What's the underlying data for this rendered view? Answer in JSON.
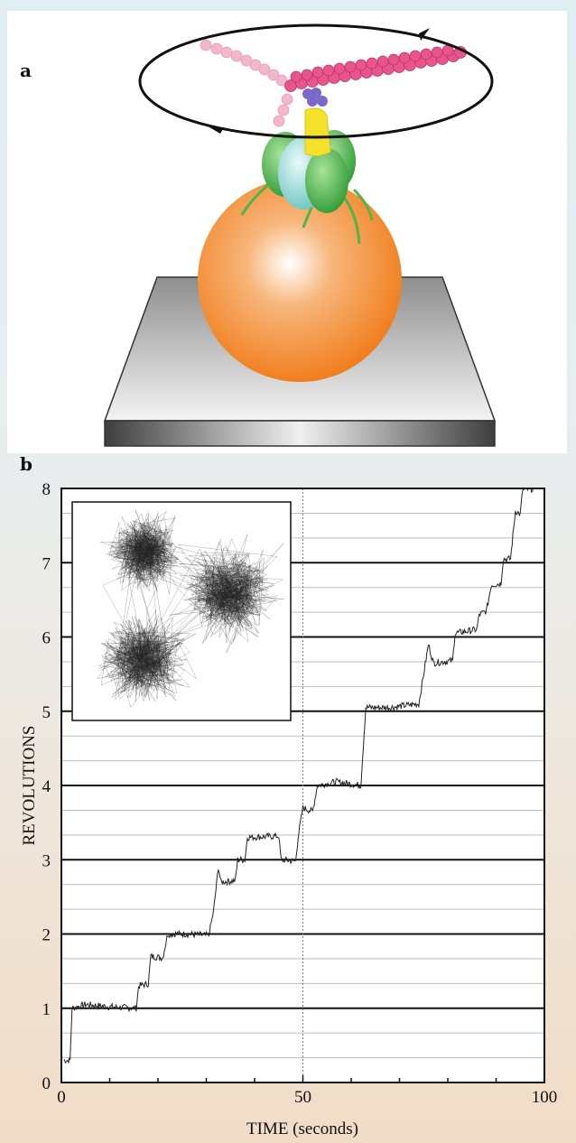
{
  "panels": {
    "a": {
      "label": "a"
    },
    "b": {
      "label": "b"
    }
  },
  "illustration": {
    "description_icons": [
      "rotation-loop-arrow-icon",
      "actin-filament",
      "rotor-complex",
      "bead",
      "glass-slide"
    ],
    "colors": {
      "filament": "#d8407a",
      "filament_faded": "#f2b7cc",
      "bead": "#f08a2a",
      "slide": "#9a9a9a",
      "subunit_green": "#4fb548",
      "subunit_cyan": "#8fd6d3",
      "stalk_yellow": "#f4e12a",
      "cap_purple": "#7b68c8"
    }
  },
  "chart_data": {
    "type": "line",
    "xlabel": "TIME (seconds)",
    "ylabel": "REVOLUTIONS",
    "xlim": [
      0,
      100
    ],
    "ylim": [
      0,
      8
    ],
    "xticks": [
      0,
      50,
      100
    ],
    "yticks": [
      0,
      1,
      2,
      3,
      4,
      5,
      6,
      7,
      8
    ],
    "grid": {
      "major_y": [
        1,
        2,
        3,
        4,
        5,
        6,
        7,
        8
      ],
      "minor_y_step": 0.3333,
      "vertical_dotted_x": 50
    },
    "series": [
      {
        "color": "#222222",
        "points": [
          [
            0.5,
            0.3
          ],
          [
            1.8,
            0.3
          ],
          [
            2.2,
            1.0
          ],
          [
            5,
            1.05
          ],
          [
            10,
            1.02
          ],
          [
            15.5,
            1.0
          ],
          [
            16,
            1.3
          ],
          [
            18,
            1.33
          ],
          [
            18.5,
            1.7
          ],
          [
            21,
            1.68
          ],
          [
            22,
            2.0
          ],
          [
            26,
            2.0
          ],
          [
            30.5,
            1.98
          ],
          [
            31.5,
            2.3
          ],
          [
            32.5,
            2.9
          ],
          [
            33,
            2.7
          ],
          [
            36,
            2.72
          ],
          [
            36.5,
            3.0
          ],
          [
            38,
            3.0
          ],
          [
            38.5,
            3.3
          ],
          [
            45,
            3.32
          ],
          [
            45.5,
            3.0
          ],
          [
            48.5,
            2.98
          ],
          [
            49,
            3.3
          ],
          [
            50,
            3.7
          ],
          [
            52,
            3.65
          ],
          [
            53,
            4.0
          ],
          [
            57,
            4.05
          ],
          [
            62,
            4.0
          ],
          [
            63,
            5.05
          ],
          [
            68,
            5.05
          ],
          [
            74,
            5.1
          ],
          [
            75,
            5.5
          ],
          [
            76,
            5.9
          ],
          [
            77,
            5.65
          ],
          [
            81,
            5.68
          ],
          [
            81.5,
            6.05
          ],
          [
            86,
            6.1
          ],
          [
            86.5,
            6.3
          ],
          [
            88,
            6.35
          ],
          [
            89,
            6.7
          ],
          [
            91,
            6.72
          ],
          [
            91.5,
            7.05
          ],
          [
            93,
            7.05
          ],
          [
            94,
            7.7
          ],
          [
            95,
            7.65
          ],
          [
            95.5,
            7.98
          ],
          [
            98,
            8.0
          ]
        ]
      }
    ],
    "inset": {
      "type": "scatter",
      "clusters": [
        {
          "center": [
            0.33,
            0.23
          ],
          "spread": 0.07
        },
        {
          "center": [
            0.72,
            0.42
          ],
          "spread": 0.09
        },
        {
          "center": [
            0.33,
            0.72
          ],
          "spread": 0.08
        }
      ]
    }
  }
}
